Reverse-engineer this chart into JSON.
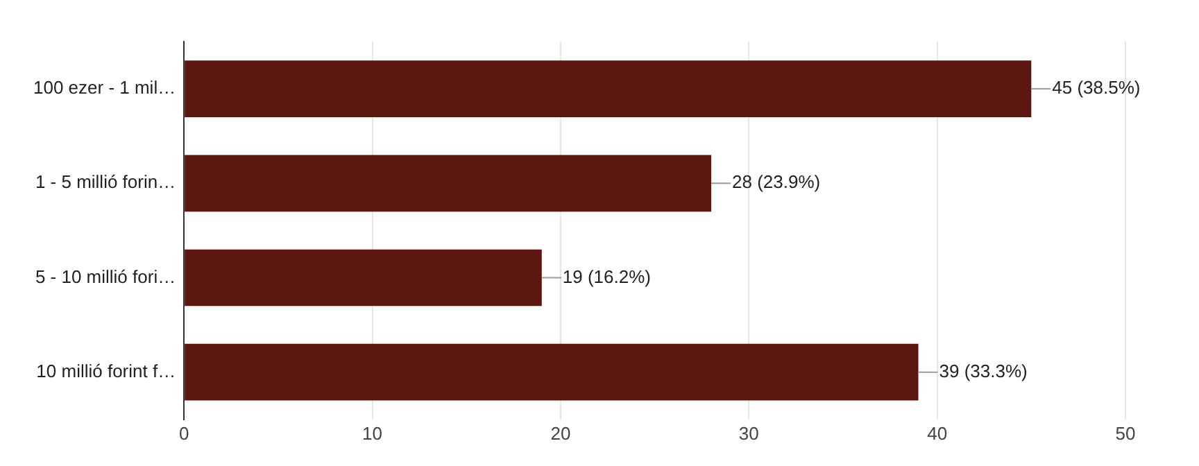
{
  "chart_data": {
    "type": "bar",
    "orientation": "horizontal",
    "categories": [
      "100 ezer - 1 mil…",
      "1 - 5 millió forin…",
      "5 - 10 millió fori…",
      "10 millió forint f…"
    ],
    "values": [
      45,
      28,
      19,
      39
    ],
    "color": "#5c1610",
    "value_labels": [
      "45 (38.5%)",
      "28 (23.9%)",
      "19 (16.2%)",
      "39 (33.3%)"
    ],
    "xlim": [
      0,
      50
    ],
    "xticks": [
      0,
      10,
      20,
      30,
      40,
      50
    ],
    "grid": "x",
    "legend": false
  }
}
